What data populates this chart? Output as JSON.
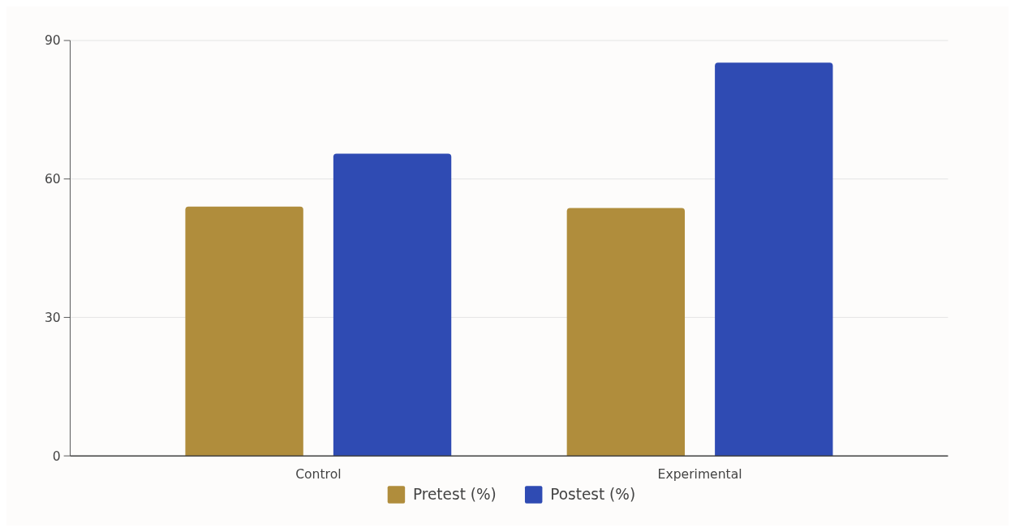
{
  "chart_data": {
    "type": "bar",
    "categories": [
      "Control",
      "Experimental"
    ],
    "series": [
      {
        "name": "Pretest (%)",
        "color": "#b08d3c",
        "values": [
          54,
          53.7
        ]
      },
      {
        "name": "Postest (%)",
        "color": "#2f4bb3",
        "values": [
          65.5,
          85.2
        ]
      }
    ],
    "ylim": [
      0,
      90
    ],
    "yticks": [
      0,
      30,
      60,
      90
    ],
    "grid": "y",
    "legend": "bottom"
  }
}
